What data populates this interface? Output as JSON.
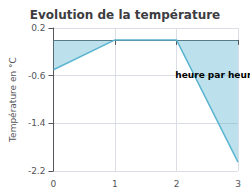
{
  "chart_data": {
    "type": "line",
    "title": "Evolution de la température",
    "xlabel": "heure par heure",
    "ylabel": "Température en °C",
    "x": [
      0,
      1,
      2,
      3
    ],
    "values": [
      -0.5,
      0.0,
      0.0,
      -2.05
    ],
    "color": "#5ab4d0",
    "xlim": [
      0,
      3
    ],
    "ylim": [
      -2.2,
      0.2
    ],
    "xticks": [
      0,
      1,
      2,
      3
    ],
    "yticks": [
      0.2,
      -0.6,
      -1.4,
      -2.2
    ],
    "grid": true
  }
}
